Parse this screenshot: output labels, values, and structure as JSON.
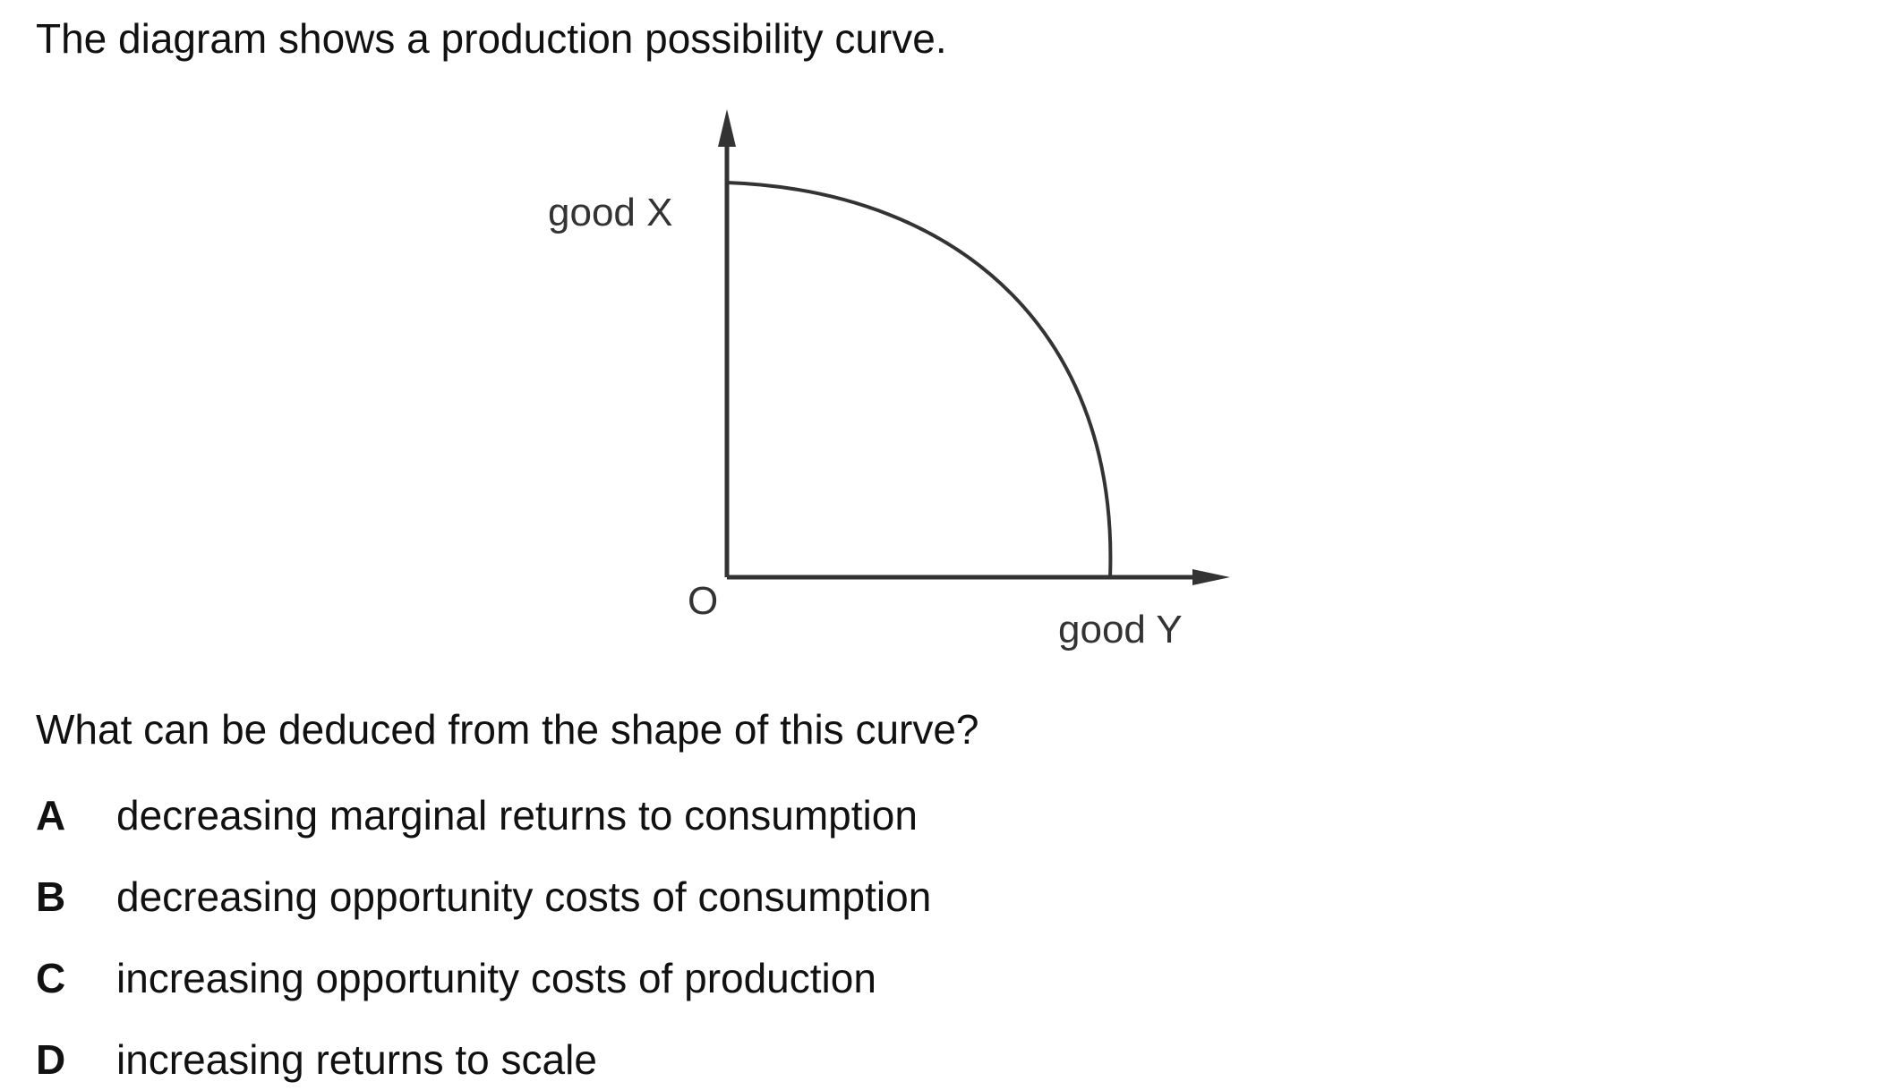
{
  "intro": "The diagram shows a production possibility curve.",
  "diagram": {
    "y_axis_label": "good X",
    "x_axis_label": "good Y",
    "origin_label": "O"
  },
  "question": "What can be deduced from the shape of this curve?",
  "options": [
    {
      "letter": "A",
      "text": "decreasing marginal returns to consumption"
    },
    {
      "letter": "B",
      "text": "decreasing opportunity costs of consumption"
    },
    {
      "letter": "C",
      "text": "increasing opportunity costs of production"
    },
    {
      "letter": "D",
      "text": "increasing returns to scale"
    }
  ]
}
